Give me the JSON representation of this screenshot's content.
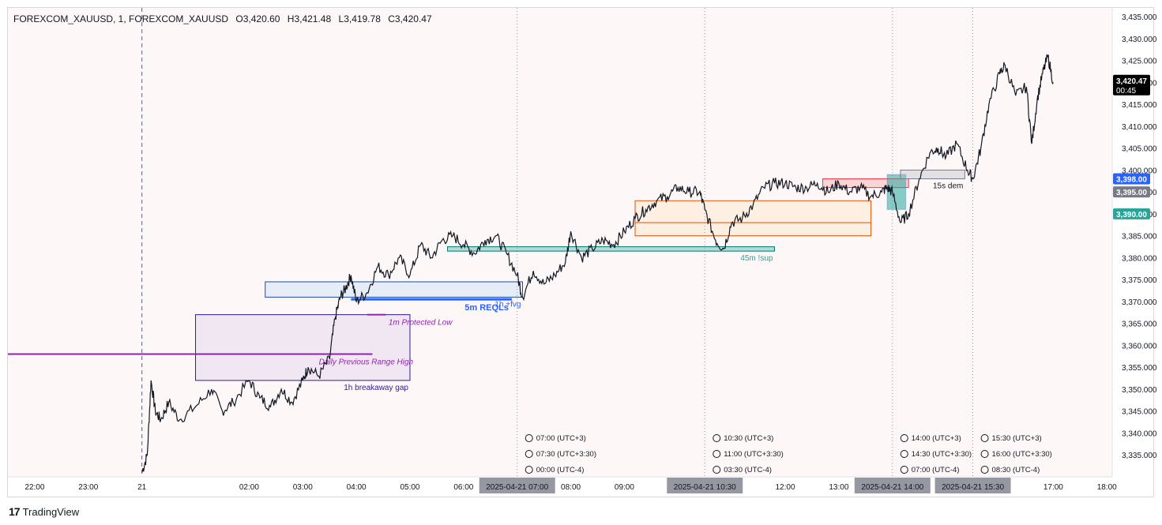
{
  "header": {
    "symbol": "FOREXCOM_XAUUSD, 1, FOREXCOM_XAUUSD",
    "open": "O3,420.60",
    "high": "H3,421.48",
    "low": "L3,419.78",
    "close": "C3,420.47"
  },
  "brand": {
    "name": "TradingView",
    "logo": "tradingview-logo-icon"
  },
  "colors": {
    "candle": "#131722",
    "purple": "#8e24aa",
    "navy": "#311b92",
    "blue": "#2962ff",
    "teal": "#26a69a",
    "orange": "#e65100",
    "red": "#f23645"
  },
  "chart_data": {
    "type": "line",
    "title": "",
    "instrument": "FOREXCOM_XAUUSD",
    "timeframe": "1",
    "ylim": [
      3330,
      3437
    ],
    "y_ticks": [
      3335,
      3340,
      3345,
      3350,
      3355,
      3360,
      3365,
      3370,
      3375,
      3380,
      3385,
      3390,
      3395,
      3400,
      3405,
      3410,
      3415,
      3420,
      3425,
      3430,
      3435
    ],
    "x_range_hours": [
      21.5,
      42.1
    ],
    "x_ticks": [
      {
        "label": "22:00",
        "t": 22
      },
      {
        "label": "23:00",
        "t": 23
      },
      {
        "label": "21",
        "t": 24
      },
      {
        "label": "02:00",
        "t": 26
      },
      {
        "label": "03:00",
        "t": 27
      },
      {
        "label": "04:00",
        "t": 28
      },
      {
        "label": "05:00",
        "t": 29
      },
      {
        "label": "06:00",
        "t": 30
      },
      {
        "label": "08:00",
        "t": 32
      },
      {
        "label": "09:00",
        "t": 33
      },
      {
        "label": "12:00",
        "t": 36
      },
      {
        "label": "13:00",
        "t": 37
      },
      {
        "label": "17:00",
        "t": 41
      },
      {
        "label": "18:00",
        "t": 42
      }
    ],
    "x_highlights": [
      {
        "label": "2025-04-21   07:00",
        "t": 31.0
      },
      {
        "label": "2025-04-21   10:30",
        "t": 34.5
      },
      {
        "label": "2025-04-21   14:00",
        "t": 38.0
      },
      {
        "label": "2025-04-21   15:30",
        "t": 39.5
      }
    ],
    "series": [
      {
        "x": [
          24.0,
          24.1,
          24.17,
          24.25,
          24.35,
          24.5,
          24.7,
          25.0,
          25.3,
          25.5,
          25.7,
          26.0,
          26.2,
          26.4,
          26.6,
          26.8,
          27.0,
          27.1,
          27.3,
          27.5,
          27.6,
          27.7,
          27.8,
          27.9,
          28.0,
          28.2,
          28.4,
          28.6,
          28.8,
          29.0,
          29.2,
          29.4,
          29.6,
          29.8,
          30.0,
          30.2,
          30.4,
          30.6,
          30.8,
          31.0,
          31.1,
          31.3,
          31.5,
          31.7,
          31.9,
          32.0,
          32.2,
          32.4,
          32.6,
          32.8,
          33.0,
          33.2,
          33.4,
          33.6,
          33.8,
          34.0,
          34.2,
          34.4,
          34.5,
          34.7,
          34.85,
          35.0,
          35.2,
          35.4,
          35.6,
          35.8,
          36.0,
          36.2,
          36.4,
          36.6,
          36.8,
          37.0,
          37.2,
          37.4,
          37.6,
          37.8,
          37.9,
          38.0,
          38.15,
          38.3,
          38.5,
          38.7,
          38.85,
          39.0,
          39.2,
          39.4,
          39.5,
          39.65,
          39.8,
          40.0,
          40.1,
          40.3,
          40.5,
          40.6,
          40.7,
          40.8,
          40.9,
          41.0
        ],
        "values": [
          3331,
          3335,
          3352,
          3345,
          3343,
          3347,
          3343,
          3346,
          3350,
          3345,
          3347,
          3352,
          3348,
          3346,
          3350,
          3347,
          3352,
          3355,
          3353,
          3357,
          3366,
          3371,
          3373,
          3376,
          3370,
          3372,
          3378,
          3376,
          3380,
          3376,
          3383,
          3380,
          3384,
          3385,
          3383,
          3381,
          3384,
          3385,
          3381,
          3376,
          3371,
          3377,
          3374,
          3376,
          3379,
          3386,
          3380,
          3382,
          3384,
          3383,
          3386,
          3389,
          3391,
          3393,
          3394,
          3396,
          3395,
          3395,
          3391,
          3384,
          3382,
          3388,
          3389,
          3392,
          3396,
          3397,
          3397,
          3396,
          3396,
          3397,
          3395,
          3397,
          3395,
          3396,
          3394,
          3395,
          3396,
          3395,
          3388,
          3390,
          3398,
          3404,
          3405,
          3403,
          3406,
          3400,
          3398,
          3405,
          3415,
          3422,
          3424,
          3417,
          3419,
          3406,
          3416,
          3422,
          3426,
          3420
        ]
      }
    ],
    "price_labels": [
      {
        "value": 3420.47,
        "text": "3,420.47",
        "sub": "00:45"
      },
      {
        "value": 3398.0,
        "text": "3,398.00"
      },
      {
        "value": 3395.0,
        "text": "3,395.00"
      },
      {
        "value": 3390.0,
        "text": "3,390.00"
      }
    ],
    "session_marks": [
      {
        "t": 31.0,
        "lines": [
          "07:00 (UTC+3)",
          "07:30 (UTC+3:30)",
          "00:00 (UTC-4)"
        ]
      },
      {
        "t": 34.5,
        "lines": [
          "10:30 (UTC+3)",
          "11:00 (UTC+3:30)",
          "03:30 (UTC-4)"
        ]
      },
      {
        "t": 38.0,
        "lines": [
          "14:00 (UTC+3)",
          "14:30 (UTC+3:30)",
          "07:00 (UTC-4)"
        ]
      },
      {
        "t": 39.5,
        "lines": [
          "15:30 (UTC+3)",
          "16:00 (UTC+3:30)",
          "08:30 (UTC-4)"
        ]
      }
    ],
    "zones": [
      {
        "label": "1h breakaway gap",
        "t1": 25.0,
        "t2": 29.0,
        "p1": 3352,
        "p2": 3367,
        "kind": "navy"
      },
      {
        "label": "1h +fvg",
        "t1": 26.3,
        "t2": 31.1,
        "p1": 3371,
        "p2": 3374.5,
        "kind": "blue"
      },
      {
        "label": "45m !sup",
        "t1": 29.7,
        "t2": 35.8,
        "p1": 3381.5,
        "p2": 3382.5,
        "kind": "teal"
      },
      {
        "label": "",
        "t1": 33.2,
        "t2": 37.6,
        "p1": 3385,
        "p2": 3393,
        "kind": "orange"
      },
      {
        "label": "",
        "t1": 36.7,
        "t2": 38.3,
        "p1": 3396,
        "p2": 3398,
        "kind": "red"
      },
      {
        "label": "",
        "t1": 37.9,
        "t2": 38.25,
        "p1": 3391,
        "p2": 3399,
        "kind": "teal-block"
      },
      {
        "label": "15s dem",
        "t1": 38.15,
        "t2": 39.35,
        "p1": 3398,
        "p2": 3400,
        "kind": "gray"
      }
    ],
    "levels": [
      {
        "label": "Daily Previous Range High",
        "t1": 21.5,
        "t2": 28.3,
        "p": 3358,
        "kind": "purple"
      },
      {
        "label": "1m Protected Low",
        "t1": 28.4,
        "t2": 28.4,
        "p": 3367,
        "kind": "purple"
      },
      {
        "label": "5m REQLs",
        "t1": 27.9,
        "t2": 30.9,
        "p": 3370.5,
        "kind": "blue"
      }
    ]
  }
}
